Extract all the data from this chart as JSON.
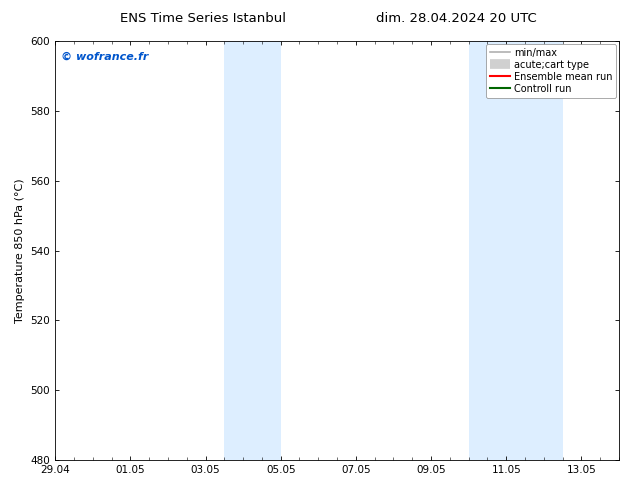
{
  "title_left": "ENS Time Series Istanbul",
  "title_right": "dim. 28.04.2024 20 UTC",
  "ylabel": "Temperature 850 hPa (°C)",
  "ylim": [
    480,
    600
  ],
  "yticks": [
    480,
    500,
    520,
    540,
    560,
    580,
    600
  ],
  "xtick_labels": [
    "29.04",
    "01.05",
    "03.05",
    "05.05",
    "07.05",
    "09.05",
    "11.05",
    "13.05"
  ],
  "xtick_positions": [
    0,
    2,
    4,
    6,
    8,
    10,
    12,
    14
  ],
  "xlim": [
    0,
    15
  ],
  "shade_bands": [
    {
      "x_start": 4.5,
      "x_end": 6.0,
      "color": "#ddeeff"
    },
    {
      "x_start": 11.0,
      "x_end": 13.5,
      "color": "#ddeeff"
    }
  ],
  "watermark_text": "© wofrance.fr",
  "watermark_color": "#0055cc",
  "legend_entries": [
    {
      "label": "min/max",
      "color": "#b0b0b0",
      "lw": 1.2,
      "ls": "-",
      "thick": false
    },
    {
      "label": "acute;cart type",
      "color": "#d0d0d0",
      "lw": 7,
      "ls": "-",
      "thick": true
    },
    {
      "label": "Ensemble mean run",
      "color": "#ff0000",
      "lw": 1.5,
      "ls": "-",
      "thick": false
    },
    {
      "label": "Controll run",
      "color": "#006600",
      "lw": 1.5,
      "ls": "-",
      "thick": false
    }
  ],
  "background_color": "#ffffff",
  "tick_label_fontsize": 7.5,
  "axis_label_fontsize": 8,
  "title_fontsize": 9.5,
  "legend_fontsize": 7
}
